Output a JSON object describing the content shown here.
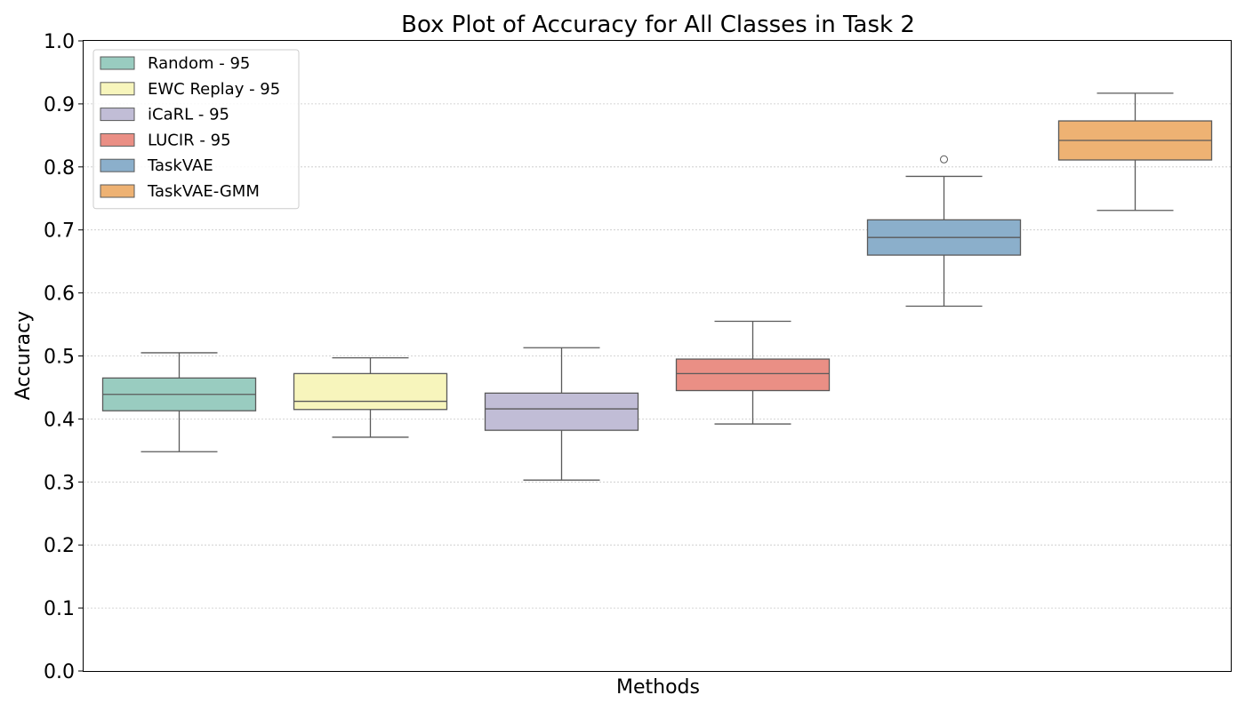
{
  "chart_data": {
    "type": "box",
    "title": "Box Plot of Accuracy for All Classes in Task 2",
    "xlabel": "Methods",
    "ylabel": "Accuracy",
    "ylim": [
      0.0,
      1.0
    ],
    "yticks": [
      0.0,
      0.1,
      0.2,
      0.3,
      0.4,
      0.5,
      0.6,
      0.7,
      0.8,
      0.9,
      1.0
    ],
    "ytick_labels": [
      "0.0",
      "0.1",
      "0.2",
      "0.3",
      "0.4",
      "0.5",
      "0.6",
      "0.7",
      "0.8",
      "0.9",
      "1.0"
    ],
    "grid": "horizontal dotted",
    "legend_position": "top-left",
    "series": [
      {
        "name": "Random - 95",
        "color": "#99ccc0",
        "whisker_low": 0.348,
        "q1": 0.413,
        "median": 0.439,
        "q3": 0.465,
        "whisker_high": 0.505,
        "outliers": []
      },
      {
        "name": "EWC Replay - 95",
        "color": "#f7f5bc",
        "whisker_low": 0.371,
        "q1": 0.415,
        "median": 0.428,
        "q3": 0.472,
        "whisker_high": 0.497,
        "outliers": []
      },
      {
        "name": "iCaRL - 95",
        "color": "#c1bdd6",
        "whisker_low": 0.303,
        "q1": 0.382,
        "median": 0.416,
        "q3": 0.441,
        "whisker_high": 0.513,
        "outliers": []
      },
      {
        "name": "LUCIR - 95",
        "color": "#ea8f85",
        "whisker_low": 0.392,
        "q1": 0.445,
        "median": 0.472,
        "q3": 0.495,
        "whisker_high": 0.555,
        "outliers": []
      },
      {
        "name": "TaskVAE",
        "color": "#8bafcb",
        "whisker_low": 0.579,
        "q1": 0.66,
        "median": 0.688,
        "q3": 0.716,
        "whisker_high": 0.785,
        "outliers": [
          0.812
        ]
      },
      {
        "name": "TaskVAE-GMM",
        "color": "#eeb273",
        "whisker_low": 0.731,
        "q1": 0.811,
        "median": 0.842,
        "q3": 0.873,
        "whisker_high": 0.917,
        "outliers": []
      }
    ]
  }
}
